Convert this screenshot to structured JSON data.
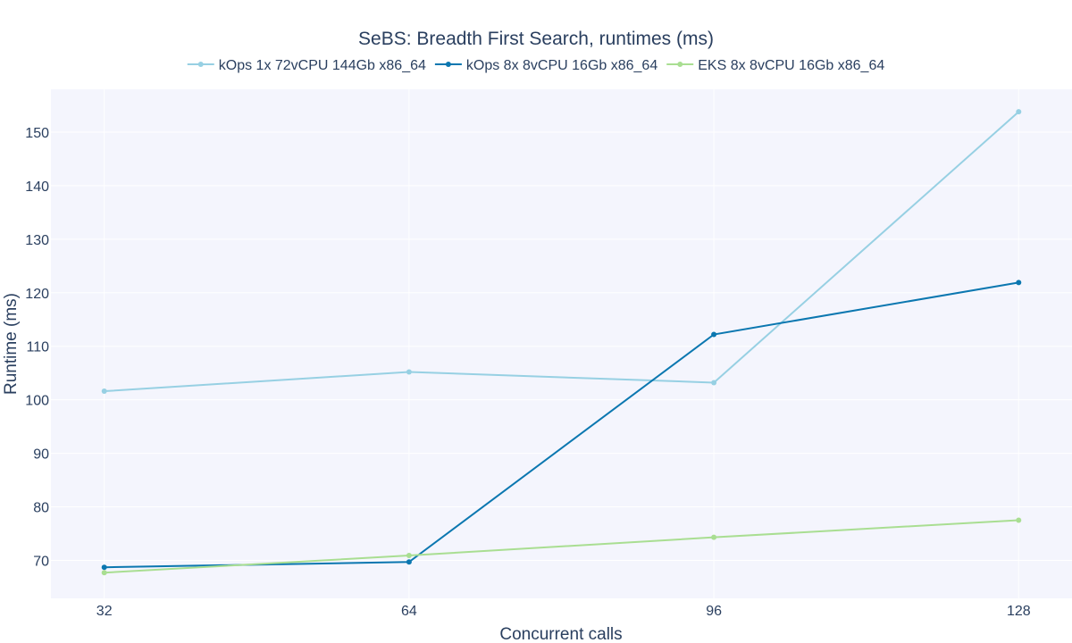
{
  "chart_data": {
    "type": "line",
    "title": "SeBS: Breadth First Search, runtimes (ms)",
    "xlabel": "Concurrent calls",
    "ylabel": "Runtime (ms)",
    "x": [
      32,
      64,
      96,
      128
    ],
    "x_ticks": [
      "32",
      "64",
      "96",
      "128"
    ],
    "y_ticks": [
      "70",
      "80",
      "90",
      "100",
      "110",
      "120",
      "130",
      "140",
      "150"
    ],
    "xlim": [
      26.4,
      133.6
    ],
    "ylim": [
      62.9,
      158.0
    ],
    "grid": true,
    "legend_placement": "top",
    "series": [
      {
        "name": "kOps 1x 72vCPU 144Gb x86_64",
        "color": "#97d0e3",
        "values": [
          101.6,
          105.2,
          103.2,
          153.8
        ]
      },
      {
        "name": "kOps 8x 8vCPU 16Gb x86_64",
        "color": "#0b77b0",
        "values": [
          68.7,
          69.7,
          112.2,
          121.9
        ]
      },
      {
        "name": "EKS 8x 8vCPU 16Gb x86_64",
        "color": "#a9de92",
        "values": [
          67.7,
          70.9,
          74.3,
          77.5
        ]
      }
    ]
  },
  "colors": {
    "plot_background": "#f4f5fd",
    "grid": "#ffffff",
    "text": "#2a3f5f"
  }
}
